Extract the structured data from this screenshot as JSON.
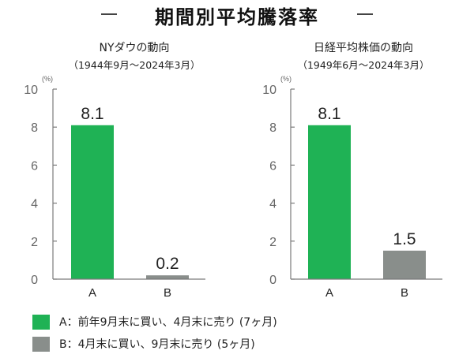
{
  "title": "期間別平均騰落率",
  "colors": {
    "A": "#1fb255",
    "B": "#898e8b",
    "axis": "#7a7a7a",
    "tick_text": "#666666"
  },
  "chart_data": [
    {
      "type": "bar",
      "title": "NYダウの動向",
      "subtitle": "（1944年9月～2024年3月）",
      "unit": "(%)",
      "categories": [
        "A",
        "B"
      ],
      "values": [
        8.1,
        0.2
      ],
      "value_labels": [
        "8.1",
        "0.2"
      ],
      "ylim": [
        0,
        10
      ],
      "yticks": [
        "0",
        "2",
        "4",
        "6",
        "8",
        "10"
      ],
      "grid": false
    },
    {
      "type": "bar",
      "title": "日経平均株価の動向",
      "subtitle": "（1949年6月～2024年3月）",
      "unit": "(%)",
      "categories": [
        "A",
        "B"
      ],
      "values": [
        8.1,
        1.5
      ],
      "value_labels": [
        "8.1",
        "1.5"
      ],
      "ylim": [
        0,
        10
      ],
      "yticks": [
        "0",
        "2",
        "4",
        "6",
        "8",
        "10"
      ],
      "grid": false
    }
  ],
  "legend": [
    {
      "key": "A",
      "text": "A：前年9月末に買い、4月末に売り (7ヶ月)"
    },
    {
      "key": "B",
      "text": "B：4月末に買い、9月末に売り (5ヶ月)"
    }
  ]
}
